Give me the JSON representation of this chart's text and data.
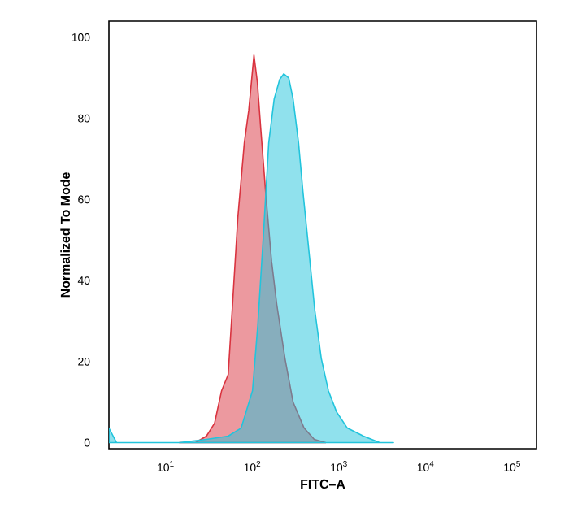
{
  "chart_data": {
    "type": "area",
    "xlabel": "FITC–A",
    "ylabel": "Normalized To Mode",
    "log": "x",
    "xlim": [
      2.2,
      190000
    ],
    "ylim": [
      -1.5,
      104
    ],
    "xticks": [
      {
        "value": 10,
        "label": "10$^{1}$"
      },
      {
        "value": 100,
        "label": "10$^{2}$"
      },
      {
        "value": 1000,
        "label": "10$^{3}$"
      },
      {
        "value": 10000,
        "label": "10$^{4}$"
      },
      {
        "value": 100000,
        "label": "10$^{5}$"
      }
    ],
    "yticks": [
      0,
      20,
      40,
      60,
      80,
      100
    ],
    "series": [
      {
        "color": "#d9333f",
        "x": [
          14.3,
          22,
          29.4,
          36.5,
          44,
          52.4,
          58.8,
          67.8,
          80.5,
          90.6,
          104,
          114,
          124,
          143,
          166,
          191,
          237,
          294,
          394,
          516,
          698
        ],
        "values": [
          0,
          0,
          1.6,
          4.8,
          12.8,
          16.8,
          34,
          55.6,
          74,
          82,
          95.6,
          88.8,
          78,
          60.8,
          44.8,
          34,
          20.8,
          10,
          3.6,
          0.8,
          0
        ]
      },
      {
        "color": "#22c4dc",
        "x": [
          2.2,
          2.7,
          14.3,
          29.4,
          52.4,
          74,
          100,
          115,
          134,
          154,
          178,
          206,
          230,
          262,
          294,
          340,
          382,
          454,
          523,
          622,
          752,
          933,
          1242,
          1910,
          2944,
          4240
        ],
        "values": [
          3.6,
          0,
          0,
          0.8,
          1.6,
          3.6,
          12.8,
          28.8,
          51.6,
          74,
          84.8,
          89.6,
          91,
          90,
          84.8,
          74,
          62,
          46,
          32.8,
          20.8,
          12.8,
          7.6,
          3.6,
          1.6,
          0,
          0
        ]
      }
    ]
  }
}
